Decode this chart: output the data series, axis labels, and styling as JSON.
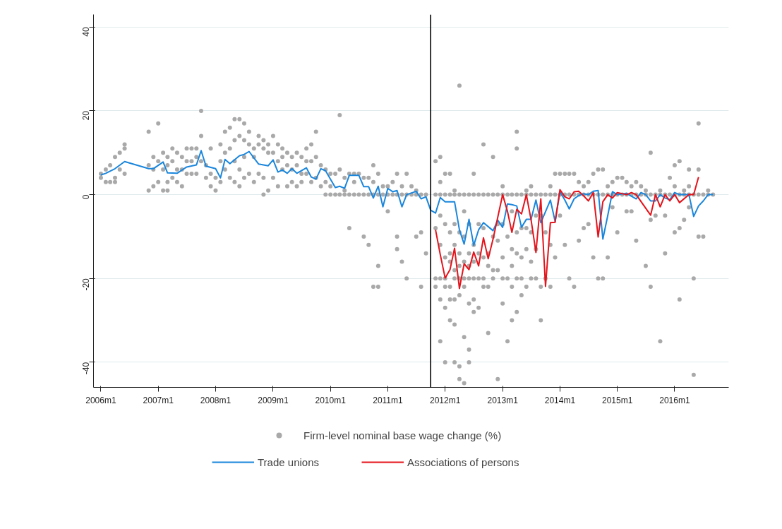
{
  "chart_data": {
    "type": "line",
    "xlim": [
      "2005-11-15",
      "2016-12-10"
    ],
    "xticks": [
      {
        "value": "2006-01",
        "label": "2006m1"
      },
      {
        "value": "2007-01",
        "label": "2007m1"
      },
      {
        "value": "2008-01",
        "label": "2008m1"
      },
      {
        "value": "2009-01",
        "label": "2009m1"
      },
      {
        "value": "2010-01",
        "label": "2010m1"
      },
      {
        "value": "2011-01",
        "label": "2011m1"
      },
      {
        "value": "2012-01",
        "label": "2012m1"
      },
      {
        "value": "2013-01",
        "label": "2013m1"
      },
      {
        "value": "2014-01",
        "label": "2014m1"
      },
      {
        "value": "2015-01",
        "label": "2015m1"
      },
      {
        "value": "2016-01",
        "label": "2016m1"
      }
    ],
    "ylim": [
      -46,
      43
    ],
    "yticks": [
      -40,
      -20,
      0,
      20,
      40
    ],
    "grid": "y",
    "legend": "bottom",
    "ref_lines": [
      {
        "axis": "x",
        "value": "2011-10",
        "color": "#000000"
      }
    ],
    "series": [
      {
        "name": "Firm-level nominal base wage change (%)",
        "type": "scatter",
        "marker": "circle",
        "color": "#a9a9a9",
        "x": [
          "2006-01",
          "2006-01",
          "2006-02",
          "2006-02",
          "2006-03",
          "2006-03",
          "2006-04",
          "2006-04",
          "2006-04",
          "2006-05",
          "2006-05",
          "2006-06",
          "2006-06",
          "2006-06",
          "2006-11",
          "2006-11",
          "2006-11",
          "2006-12",
          "2006-12",
          "2006-12",
          "2007-01",
          "2007-01",
          "2007-01",
          "2007-02",
          "2007-02",
          "2007-02",
          "2007-03",
          "2007-03",
          "2007-03",
          "2007-03",
          "2007-04",
          "2007-04",
          "2007-04",
          "2007-05",
          "2007-05",
          "2007-05",
          "2007-06",
          "2007-06",
          "2007-06",
          "2007-07",
          "2007-07",
          "2007-07",
          "2007-08",
          "2007-08",
          "2007-08",
          "2007-09",
          "2007-09",
          "2007-09",
          "2007-10",
          "2007-10",
          "2007-10",
          "2007-11",
          "2007-11",
          "2007-12",
          "2007-12",
          "2007-12",
          "2008-01",
          "2008-01",
          "2008-02",
          "2008-02",
          "2008-02",
          "2008-03",
          "2008-03",
          "2008-03",
          "2008-04",
          "2008-04",
          "2008-04",
          "2008-05",
          "2008-05",
          "2008-05",
          "2008-05",
          "2008-06",
          "2008-06",
          "2008-06",
          "2008-06",
          "2008-07",
          "2008-07",
          "2008-07",
          "2008-07",
          "2008-08",
          "2008-08",
          "2008-08",
          "2008-09",
          "2008-09",
          "2008-09",
          "2008-10",
          "2008-10",
          "2008-10",
          "2008-11",
          "2008-11",
          "2008-11",
          "2008-11",
          "2008-12",
          "2008-12",
          "2008-12",
          "2009-01",
          "2009-01",
          "2009-01",
          "2009-02",
          "2009-02",
          "2009-02",
          "2009-03",
          "2009-03",
          "2009-03",
          "2009-04",
          "2009-04",
          "2009-04",
          "2009-05",
          "2009-05",
          "2009-05",
          "2009-06",
          "2009-06",
          "2009-06",
          "2009-07",
          "2009-07",
          "2009-07",
          "2009-08",
          "2009-08",
          "2009-08",
          "2009-09",
          "2009-09",
          "2009-09",
          "2009-10",
          "2009-10",
          "2009-10",
          "2009-11",
          "2009-11",
          "2009-12",
          "2009-12",
          "2009-12",
          "2010-01",
          "2010-01",
          "2010-01",
          "2010-02",
          "2010-02",
          "2010-03",
          "2010-03",
          "2010-03",
          "2010-04",
          "2010-04",
          "2010-04",
          "2010-05",
          "2010-05",
          "2010-05",
          "2010-06",
          "2010-06",
          "2010-06",
          "2010-07",
          "2010-07",
          "2010-08",
          "2010-08",
          "2010-08",
          "2010-09",
          "2010-09",
          "2010-09",
          "2010-10",
          "2010-10",
          "2010-10",
          "2010-10",
          "2010-11",
          "2010-11",
          "2010-11",
          "2010-11",
          "2010-12",
          "2010-12",
          "2011-01",
          "2011-01",
          "2011-01",
          "2011-02",
          "2011-02",
          "2011-03",
          "2011-03",
          "2011-03",
          "2011-03",
          "2011-04",
          "2011-04",
          "2011-04",
          "2011-05",
          "2011-05",
          "2011-05",
          "2011-06",
          "2011-06",
          "2011-07",
          "2011-07",
          "2011-07",
          "2011-08",
          "2011-08",
          "2011-08",
          "2011-09",
          "2011-09",
          "2011-11",
          "2011-11",
          "2011-11",
          "2011-11",
          "2011-11",
          "2011-12",
          "2011-12",
          "2011-12",
          "2011-12",
          "2011-12",
          "2011-12",
          "2011-12",
          "2011-12",
          "2012-01",
          "2012-01",
          "2012-01",
          "2012-01",
          "2012-01",
          "2012-01",
          "2012-01",
          "2012-01",
          "2012-02",
          "2012-02",
          "2012-02",
          "2012-02",
          "2012-02",
          "2012-02",
          "2012-02",
          "2012-02",
          "2012-03",
          "2012-03",
          "2012-03",
          "2012-03",
          "2012-03",
          "2012-03",
          "2012-03",
          "2012-03",
          "2012-03",
          "2012-04",
          "2012-04",
          "2012-04",
          "2012-04",
          "2012-04",
          "2012-04",
          "2012-04",
          "2012-04",
          "2012-04",
          "2012-05",
          "2012-05",
          "2012-05",
          "2012-05",
          "2012-05",
          "2012-05",
          "2012-05",
          "2012-05",
          "2012-06",
          "2012-06",
          "2012-06",
          "2012-06",
          "2012-06",
          "2012-06",
          "2012-06",
          "2012-06",
          "2012-07",
          "2012-07",
          "2012-07",
          "2012-07",
          "2012-07",
          "2012-07",
          "2012-07",
          "2012-08",
          "2012-08",
          "2012-08",
          "2012-08",
          "2012-08",
          "2012-09",
          "2012-09",
          "2012-09",
          "2012-09",
          "2012-09",
          "2012-09",
          "2012-10",
          "2012-10",
          "2012-10",
          "2012-10",
          "2012-10",
          "2012-11",
          "2012-11",
          "2012-11",
          "2012-11",
          "2012-11",
          "2012-12",
          "2012-12",
          "2012-12",
          "2012-12",
          "2012-12",
          "2013-01",
          "2013-01",
          "2013-01",
          "2013-01",
          "2013-01",
          "2013-01",
          "2013-02",
          "2013-02",
          "2013-02",
          "2013-02",
          "2013-03",
          "2013-03",
          "2013-03",
          "2013-03",
          "2013-03",
          "2013-03",
          "2013-04",
          "2013-04",
          "2013-04",
          "2013-04",
          "2013-04",
          "2013-04",
          "2013-04",
          "2013-05",
          "2013-05",
          "2013-05",
          "2013-05",
          "2013-05",
          "2013-06",
          "2013-06",
          "2013-06",
          "2013-06",
          "2013-06",
          "2013-07",
          "2013-07",
          "2013-07",
          "2013-07",
          "2013-07",
          "2013-08",
          "2013-08",
          "2013-08",
          "2013-08",
          "2013-09",
          "2013-09",
          "2013-09",
          "2013-09",
          "2013-10",
          "2013-10",
          "2013-10",
          "2013-11",
          "2013-11",
          "2013-11",
          "2013-11",
          "2013-12",
          "2013-12",
          "2013-12",
          "2014-01",
          "2014-01",
          "2014-01",
          "2014-02",
          "2014-02",
          "2014-02",
          "2014-03",
          "2014-03",
          "2014-03",
          "2014-04",
          "2014-04",
          "2014-04",
          "2014-05",
          "2014-05",
          "2014-05",
          "2014-06",
          "2014-06",
          "2014-06",
          "2014-07",
          "2014-07",
          "2014-07",
          "2014-08",
          "2014-08",
          "2014-08",
          "2014-09",
          "2014-09",
          "2014-09",
          "2014-10",
          "2014-10",
          "2014-10",
          "2014-11",
          "2014-11",
          "2014-11",
          "2014-12",
          "2014-12",
          "2014-12",
          "2015-01",
          "2015-01",
          "2015-01",
          "2015-02",
          "2015-02",
          "2015-03",
          "2015-03",
          "2015-03",
          "2015-04",
          "2015-04",
          "2015-04",
          "2015-05",
          "2015-05",
          "2015-05",
          "2015-06",
          "2015-06",
          "2015-07",
          "2015-07",
          "2015-07",
          "2015-08",
          "2015-08",
          "2015-08",
          "2015-08",
          "2015-09",
          "2015-09",
          "2015-10",
          "2015-10",
          "2015-10",
          "2015-11",
          "2015-11",
          "2015-11",
          "2015-12",
          "2015-12",
          "2016-01",
          "2016-01",
          "2016-01",
          "2016-01",
          "2016-02",
          "2016-02",
          "2016-02",
          "2016-02",
          "2016-03",
          "2016-03",
          "2016-03",
          "2016-04",
          "2016-04",
          "2016-04",
          "2016-04",
          "2016-05",
          "2016-05",
          "2016-05",
          "2016-06",
          "2016-06",
          "2016-06",
          "2016-06",
          "2016-07",
          "2016-07",
          "2016-08",
          "2016-08",
          "2016-09"
        ],
        "values": [
          5,
          4,
          6,
          3,
          7,
          3,
          9,
          4,
          3,
          10,
          6,
          12,
          11,
          5,
          15,
          7,
          1,
          9,
          6,
          2,
          17,
          8,
          3,
          10,
          6,
          1,
          9,
          7,
          3,
          1,
          11,
          8,
          4,
          10,
          6,
          3,
          9,
          6,
          2,
          11,
          8,
          5,
          11,
          8,
          5,
          11,
          9,
          5,
          20,
          14,
          8,
          7,
          4,
          11,
          5,
          2,
          4,
          1,
          12,
          8,
          3,
          15,
          10,
          6,
          16,
          11,
          4,
          18,
          13,
          8,
          3,
          18,
          14,
          6,
          2,
          17,
          13,
          9,
          4,
          15,
          12,
          5,
          11,
          9,
          3,
          14,
          12,
          5,
          13,
          11,
          4,
          0,
          12,
          10,
          1,
          14,
          10,
          4,
          12,
          8,
          2,
          11,
          9,
          6,
          10,
          7,
          2,
          9,
          6,
          3,
          10,
          7,
          2,
          9,
          5,
          3,
          11,
          8,
          5,
          12,
          8,
          3,
          15,
          9,
          4,
          7,
          2,
          6,
          3,
          0,
          5,
          2,
          0,
          5,
          0,
          19,
          6,
          0,
          4,
          1,
          0,
          5,
          0,
          -8,
          5,
          3,
          0,
          5,
          0,
          4,
          0,
          -10,
          4,
          0,
          -12,
          7,
          3,
          0,
          -22,
          5,
          0,
          -22,
          -17,
          2,
          0,
          2,
          0,
          -4,
          3,
          0,
          5,
          0,
          -10,
          -13,
          2,
          0,
          -16,
          5,
          0,
          -20,
          2,
          0,
          1,
          0,
          -10,
          0,
          -9,
          -22,
          0,
          -14,
          8,
          0,
          -8,
          -20,
          -22,
          9,
          3,
          0,
          -5,
          -12,
          -20,
          -25,
          -35,
          5,
          0,
          -7,
          -15,
          -20,
          -22,
          -27,
          -40,
          5,
          0,
          -9,
          -14,
          -16,
          -22,
          -25,
          -30,
          1,
          0,
          -7,
          -12,
          -18,
          -20,
          -25,
          -31,
          -40,
          26,
          0,
          -9,
          -14,
          -17,
          -20,
          -24,
          -41,
          -44,
          0,
          -4,
          -10,
          -16,
          -20,
          -22,
          -34,
          -45,
          0,
          -7,
          -14,
          -17,
          -20,
          -26,
          -37,
          -40,
          5,
          0,
          -12,
          -16,
          -20,
          -25,
          -28,
          0,
          -7,
          -14,
          -20,
          -27,
          12,
          0,
          -8,
          -15,
          -20,
          -22,
          0,
          -14,
          -17,
          -22,
          -33,
          9,
          0,
          -10,
          -18,
          -20,
          0,
          -7,
          -11,
          -18,
          -44,
          2,
          0,
          -7,
          -15,
          -20,
          -26,
          0,
          -10,
          -20,
          -35,
          0,
          -4,
          -13,
          -17,
          -22,
          -30,
          15,
          11,
          0,
          -9,
          -14,
          -20,
          -28,
          0,
          -8,
          -15,
          -20,
          -24,
          1,
          0,
          -8,
          -13,
          -22,
          2,
          0,
          -9,
          -16,
          -20,
          0,
          -5,
          -13,
          -20,
          0,
          -5,
          -22,
          -30,
          0,
          -9,
          -20,
          2,
          0,
          -12,
          -22,
          5,
          0,
          -15,
          5,
          0,
          -5,
          5,
          0,
          -12,
          5,
          0,
          -20,
          5,
          0,
          -22,
          3,
          0,
          -11,
          2,
          0,
          -8,
          3,
          0,
          -7,
          5,
          0,
          -15,
          6,
          0,
          -20,
          6,
          0,
          -20,
          2,
          0,
          -15,
          3,
          0,
          -3,
          4,
          0,
          -9,
          4,
          0,
          3,
          0,
          -4,
          2,
          0,
          -4,
          3,
          0,
          -11,
          2,
          0,
          1,
          0,
          -17,
          10,
          0,
          -6,
          -22,
          0,
          -5,
          1,
          0,
          -35,
          0,
          -5,
          -14,
          4,
          0,
          7,
          2,
          0,
          -9,
          8,
          0,
          -8,
          -25,
          1,
          0,
          -6,
          6,
          2,
          0,
          -3,
          0,
          -20,
          -43,
          17,
          6,
          0,
          -10,
          0,
          -10,
          1,
          0,
          0
        ]
      },
      {
        "name": "Trade unions",
        "marker": "none",
        "line_style": "solid",
        "color": "#1a86dc",
        "x": [
          "2006-01",
          "2006-02",
          "2006-04",
          "2006-06",
          "2006-11",
          "2006-12",
          "2007-02",
          "2007-03",
          "2007-05",
          "2007-07",
          "2007-09",
          "2007-10",
          "2007-11",
          "2008-01",
          "2008-02",
          "2008-03",
          "2008-04",
          "2008-06",
          "2008-07",
          "2008-08",
          "2008-10",
          "2008-12",
          "2009-01",
          "2009-02",
          "2009-03",
          "2009-04",
          "2009-05",
          "2009-06",
          "2009-08",
          "2009-09",
          "2009-10",
          "2009-11",
          "2009-12",
          "2010-02",
          "2010-03",
          "2010-04",
          "2010-05",
          "2010-07",
          "2010-08",
          "2010-09",
          "2010-10",
          "2010-11",
          "2010-12",
          "2011-01",
          "2011-02",
          "2011-03",
          "2011-04",
          "2011-05",
          "2011-07",
          "2011-08",
          "2011-09",
          "2011-10",
          "2011-11",
          "2011-12",
          "2012-01",
          "2012-03",
          "2012-04",
          "2012-05",
          "2012-06",
          "2012-07",
          "2012-08",
          "2012-09",
          "2012-11",
          "2012-12",
          "2013-01",
          "2013-02",
          "2013-03",
          "2013-04",
          "2013-05",
          "2013-06",
          "2013-07",
          "2013-08",
          "2013-09",
          "2013-11",
          "2013-12",
          "2014-01",
          "2014-02",
          "2014-03",
          "2014-04",
          "2014-05",
          "2014-06",
          "2014-07",
          "2014-08",
          "2014-09",
          "2014-10",
          "2014-11",
          "2014-12",
          "2015-01",
          "2015-03",
          "2015-05",
          "2015-06",
          "2015-07",
          "2015-08",
          "2015-09",
          "2015-10",
          "2015-11",
          "2015-12",
          "2016-01",
          "2016-02",
          "2016-04",
          "2016-05",
          "2016-06",
          "2016-07",
          "2016-08",
          "2016-09"
        ],
        "values": [
          4.7,
          5.1,
          6.2,
          7.9,
          6.2,
          6.2,
          7.8,
          5.2,
          5.1,
          6.6,
          7.1,
          10.5,
          6.8,
          6.2,
          4.0,
          8.4,
          7.4,
          9.3,
          9.6,
          10.3,
          7.3,
          6.9,
          8.3,
          5.4,
          5.9,
          5.1,
          6.2,
          5.1,
          6.4,
          4.2,
          3.7,
          6.2,
          5.7,
          1.7,
          2.0,
          1.5,
          4.6,
          4.6,
          1.9,
          1.9,
          -0.8,
          2.0,
          -2.9,
          1.5,
          0.7,
          1.0,
          -2.9,
          0,
          0.8,
          -1,
          -0.5,
          -3.7,
          -4.4,
          -0.7,
          -1.7,
          -1.7,
          -8.4,
          -11.8,
          -5.9,
          -12.1,
          -8.4,
          -6.7,
          -8.6,
          -6.1,
          -7.8,
          -2.2,
          -2.4,
          -2.7,
          -7.8,
          -5.9,
          -5.9,
          -1.3,
          -6.7,
          -1.3,
          -6.4,
          0.7,
          -1.3,
          -3.4,
          -1.0,
          -0.2,
          0.2,
          0,
          0.8,
          1.0,
          -10.6,
          -5,
          0.7,
          0,
          0.3,
          -1,
          0.5,
          0,
          -1.5,
          -1.5,
          0,
          -0.8,
          -1.2,
          0.5,
          0,
          0,
          -5.2,
          -2.7,
          -1.5,
          0,
          0
        ]
      },
      {
        "name": "Associations of persons",
        "marker": "none",
        "line_style": "solid",
        "color": "#e5131b",
        "x": [
          "2011-11",
          "2011-12",
          "2012-01",
          "2012-02",
          "2012-03",
          "2012-04",
          "2012-05",
          "2012-06",
          "2012-07",
          "2012-08",
          "2012-09",
          "2012-10",
          "2012-11",
          "2013-01",
          "2013-02",
          "2013-03",
          "2013-04",
          "2013-05",
          "2013-06",
          "2013-07",
          "2013-08",
          "2013-09",
          "2013-10",
          "2013-11",
          "2013-12",
          "2014-01",
          "2014-02",
          "2014-03",
          "2014-04",
          "2014-05",
          "2014-06",
          "2014-07",
          "2014-08",
          "2014-09",
          "2014-10",
          "2014-11",
          "2014-12",
          "2015-01",
          "2015-03",
          "2015-04",
          "2015-05",
          "2015-08",
          "2015-09",
          "2015-10",
          "2015-11",
          "2015-12",
          "2016-01",
          "2016-02",
          "2016-04",
          "2016-05",
          "2016-06"
        ],
        "values": [
          -8.4,
          -14.3,
          -19.9,
          -17.9,
          -12.8,
          -22.4,
          -16.5,
          -17.9,
          -13.7,
          -17,
          -10.3,
          -15.3,
          -10.6,
          0,
          -4,
          -9,
          -3.5,
          -4.6,
          0,
          -6,
          -13.8,
          -1,
          -21.9,
          -6.7,
          -6.6,
          1.2,
          -0.5,
          -1,
          0.7,
          0.8,
          -0.3,
          -1.5,
          0.5,
          -10.1,
          -1.7,
          0,
          -0.8,
          0.5,
          0,
          0.5,
          0,
          -4.9,
          0,
          -2.9,
          0,
          -1.5,
          0,
          -1.9,
          0,
          0,
          4.2
        ]
      }
    ]
  }
}
